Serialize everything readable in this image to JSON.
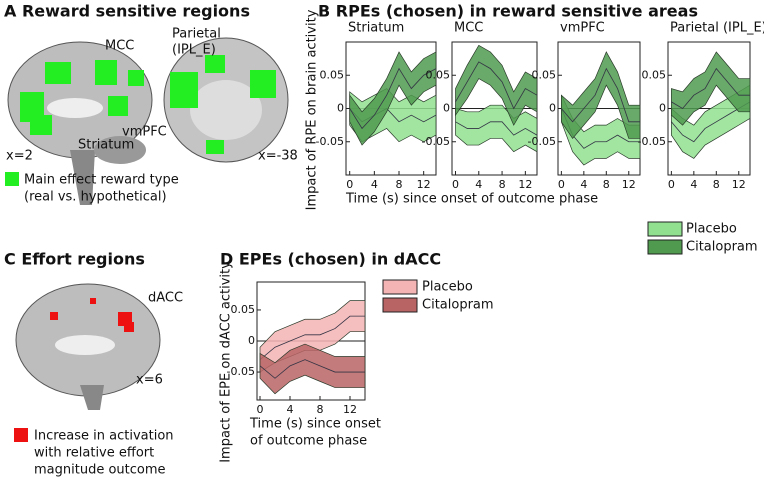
{
  "panels": {
    "a": {
      "title": "A Reward sensitive regions",
      "mcc": "MCC",
      "parietal": [
        "Parietal",
        "(IPL_E)"
      ],
      "vmpfc": "vmPFC",
      "striatum": "Striatum",
      "slice_left": "x=2",
      "slice_right": "x=-38",
      "legend": [
        "Main effect reward type",
        "(real vs. hypothetical)"
      ]
    },
    "b": {
      "title": "B RPEs (chosen) in reward sensitive areas"
    },
    "c": {
      "title": "C Effort regions",
      "dacc": "dACC",
      "slice": "x=6",
      "legend": [
        "Increase in activation",
        "with relative effort",
        "magnitude outcome"
      ]
    }
  },
  "chart_data": [
    {
      "type": "line",
      "title": "Striatum",
      "ylabel": "Impact of RPE on brain activity",
      "xlabel": "Time (s) since onset of outcome phase",
      "x": [
        0,
        2,
        4,
        6,
        8,
        10,
        12,
        14
      ],
      "xlim": [
        -0.6,
        14
      ],
      "xticks": [
        0,
        4,
        8,
        12
      ],
      "ylim": [
        -0.1,
        0.1
      ],
      "yticks": [
        -0.05,
        0,
        0.05
      ],
      "series": [
        {
          "name": "Placebo",
          "color": "#90e090",
          "values": [
            0,
            -0.02,
            -0.01,
            0.0,
            -0.02,
            -0.01,
            -0.02,
            -0.01
          ],
          "errors": [
            0.025,
            0.03,
            0.03,
            0.03,
            0.03,
            0.03,
            0.03,
            0.03
          ]
        },
        {
          "name": "Citalopram",
          "color": "#4f9a4f",
          "values": [
            0,
            -0.03,
            -0.01,
            0.02,
            0.06,
            0.03,
            0.05,
            0.06
          ],
          "errors": [
            0.02,
            0.025,
            0.025,
            0.025,
            0.025,
            0.025,
            0.025,
            0.025
          ]
        }
      ]
    },
    {
      "type": "line",
      "title": "MCC",
      "x": [
        0,
        2,
        4,
        6,
        8,
        10,
        12,
        14
      ],
      "xlim": [
        -0.6,
        14
      ],
      "xticks": [
        0,
        4,
        8,
        12
      ],
      "ylim": [
        -0.1,
        0.1
      ],
      "yticks": [
        -0.05,
        0,
        0.05
      ],
      "series": [
        {
          "name": "Placebo",
          "color": "#90e090",
          "values": [
            -0.02,
            -0.03,
            -0.03,
            -0.02,
            -0.02,
            -0.04,
            -0.03,
            -0.04
          ],
          "errors": [
            0.02,
            0.025,
            0.025,
            0.025,
            0.025,
            0.025,
            0.025,
            0.025
          ]
        },
        {
          "name": "Citalopram",
          "color": "#4f9a4f",
          "values": [
            0.01,
            0.04,
            0.07,
            0.06,
            0.04,
            0.0,
            0.03,
            0.02
          ],
          "errors": [
            0.02,
            0.025,
            0.025,
            0.025,
            0.025,
            0.025,
            0.025,
            0.025
          ]
        }
      ]
    },
    {
      "type": "line",
      "title": "vmPFC",
      "x": [
        0,
        2,
        4,
        6,
        8,
        10,
        12,
        14
      ],
      "xlim": [
        -0.6,
        14
      ],
      "xticks": [
        0,
        4,
        8,
        12
      ],
      "ylim": [
        -0.1,
        0.1
      ],
      "yticks": [
        -0.05,
        0,
        0.05
      ],
      "series": [
        {
          "name": "Placebo",
          "color": "#90e090",
          "values": [
            0,
            -0.04,
            -0.06,
            -0.05,
            -0.05,
            -0.04,
            -0.05,
            -0.05
          ],
          "errors": [
            0.02,
            0.025,
            0.025,
            0.025,
            0.025,
            0.025,
            0.025,
            0.025
          ]
        },
        {
          "name": "Citalopram",
          "color": "#4f9a4f",
          "values": [
            0,
            -0.02,
            0.0,
            0.02,
            0.06,
            0.03,
            -0.02,
            -0.02
          ],
          "errors": [
            0.02,
            0.025,
            0.025,
            0.025,
            0.025,
            0.025,
            0.025,
            0.025
          ]
        }
      ]
    },
    {
      "type": "line",
      "title": "Parietal (IPL_E)",
      "x": [
        0,
        2,
        4,
        6,
        8,
        10,
        12,
        14
      ],
      "xlim": [
        -0.6,
        14
      ],
      "xticks": [
        0,
        4,
        8,
        12
      ],
      "ylim": [
        -0.1,
        0.1
      ],
      "yticks": [
        -0.05,
        0,
        0.05
      ],
      "series": [
        {
          "name": "Placebo",
          "color": "#90e090",
          "values": [
            -0.02,
            -0.04,
            -0.05,
            -0.03,
            -0.02,
            -0.01,
            0.0,
            0.01
          ],
          "errors": [
            0.02,
            0.025,
            0.025,
            0.025,
            0.025,
            0.025,
            0.025,
            0.025
          ]
        },
        {
          "name": "Citalopram",
          "color": "#4f9a4f",
          "values": [
            0.01,
            0.0,
            0.02,
            0.03,
            0.06,
            0.04,
            0.02,
            0.02
          ],
          "errors": [
            0.02,
            0.025,
            0.025,
            0.025,
            0.025,
            0.025,
            0.025,
            0.025
          ]
        }
      ]
    },
    {
      "type": "line",
      "title": "D EPEs (chosen) in dACC",
      "ylabel": "Impact of EPE on dACC activity",
      "xlabel": [
        "Time (s) since onset",
        "of outcome phase"
      ],
      "x": [
        0,
        2,
        4,
        6,
        8,
        10,
        12,
        14
      ],
      "xlim": [
        -0.4,
        14
      ],
      "xticks": [
        0,
        4,
        8,
        12
      ],
      "ylim": [
        -0.095,
        0.095
      ],
      "yticks": [
        -0.05,
        0,
        0.05
      ],
      "series": [
        {
          "name": "Placebo",
          "color": "#f4b4b4",
          "values": [
            -0.03,
            -0.01,
            0.0,
            0.01,
            0.01,
            0.02,
            0.04,
            0.04
          ],
          "errors": [
            0.02,
            0.025,
            0.025,
            0.025,
            0.025,
            0.025,
            0.025,
            0.025
          ]
        },
        {
          "name": "Citalopram",
          "color": "#b86464",
          "values": [
            -0.04,
            -0.06,
            -0.04,
            -0.03,
            -0.04,
            -0.05,
            -0.05,
            -0.05
          ],
          "errors": [
            0.02,
            0.025,
            0.025,
            0.025,
            0.025,
            0.025,
            0.025,
            0.025
          ]
        }
      ]
    }
  ]
}
